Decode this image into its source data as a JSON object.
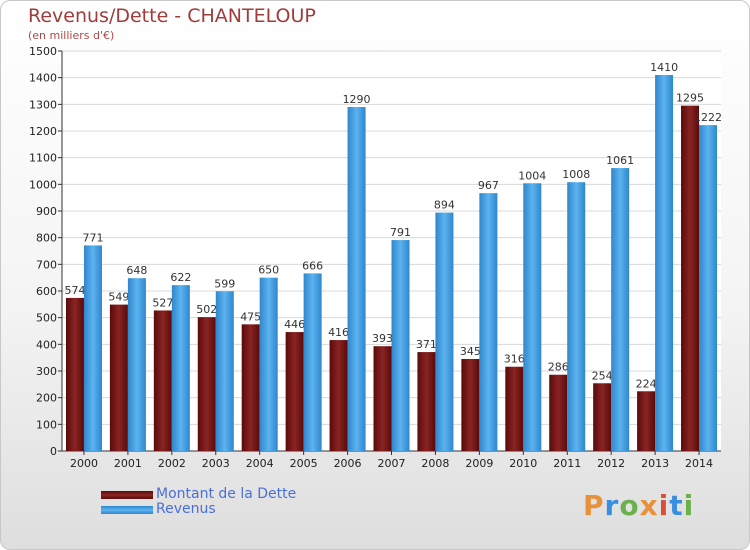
{
  "chart_data": {
    "type": "bar",
    "title": "Revenus/Dette - CHANTELOUP",
    "subtitle": "(en milliers d'€)",
    "categories": [
      "2000",
      "2001",
      "2002",
      "2003",
      "2004",
      "2005",
      "2006",
      "2007",
      "2008",
      "2009",
      "2010",
      "2011",
      "2012",
      "2013",
      "2014"
    ],
    "series": [
      {
        "name": "Montant de la Dette",
        "color": "#7b1a1a",
        "values": [
          574,
          549,
          527,
          502,
          475,
          446,
          416,
          393,
          371,
          345,
          316,
          286,
          254,
          224,
          1295
        ]
      },
      {
        "name": "Revenus",
        "color": "#4aa3e6",
        "values": [
          771,
          648,
          622,
          599,
          650,
          666,
          1290,
          791,
          894,
          967,
          1004,
          1008,
          1061,
          1410,
          1222
        ]
      }
    ],
    "ylim": [
      0,
      1500
    ],
    "yticks": [
      0,
      100,
      200,
      300,
      400,
      500,
      600,
      700,
      800,
      900,
      1000,
      1100,
      1200,
      1300,
      1400,
      1500
    ],
    "grid": true,
    "legend": "bottom-left"
  },
  "logo": {
    "text": "Proxiti",
    "colors": [
      "#e8913a",
      "#3a8ee0",
      "#6ab04c",
      "#e8913a",
      "#d94f3a",
      "#3a8ee0",
      "#6ab04c"
    ]
  }
}
